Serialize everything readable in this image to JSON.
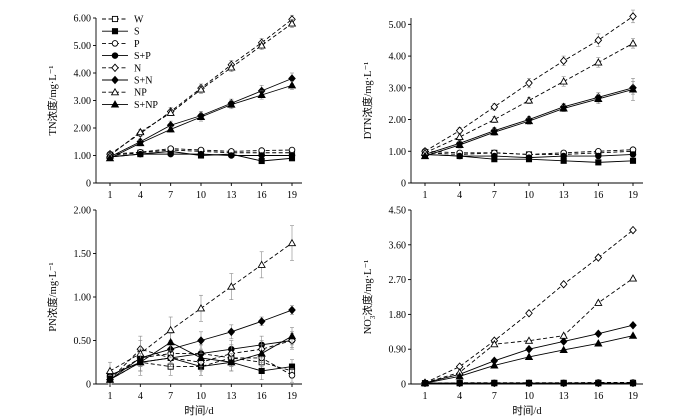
{
  "figure": {
    "legend": [
      {
        "key": "W",
        "label": "W",
        "line": "dashed",
        "marker": "square-open"
      },
      {
        "key": "S",
        "label": "S",
        "line": "solid",
        "marker": "square-filled"
      },
      {
        "key": "P",
        "label": "P",
        "line": "dashed",
        "marker": "circle-open"
      },
      {
        "key": "SP",
        "label": "S+P",
        "line": "solid",
        "marker": "circle-filled"
      },
      {
        "key": "N",
        "label": "N",
        "line": "dashed",
        "marker": "diamond-open"
      },
      {
        "key": "SN",
        "label": "S+N",
        "line": "solid",
        "marker": "diamond-filled"
      },
      {
        "key": "NP",
        "label": "NP",
        "line": "dashed",
        "marker": "triangle-open"
      },
      {
        "key": "SNP",
        "label": "S+NP",
        "line": "solid",
        "marker": "triangle-filled"
      }
    ]
  },
  "chart_data": [
    {
      "id": "tn",
      "type": "line",
      "ylabel": "TN浓度/mg·L⁻¹",
      "xlabel": "",
      "x": [
        1,
        4,
        7,
        10,
        13,
        16,
        19
      ],
      "ylim": [
        0,
        6
      ],
      "yticks": [
        "0",
        "1.00",
        "2.00",
        "3.00",
        "4.00",
        "5.00",
        "6.00"
      ],
      "ytick_values": [
        0,
        1,
        2,
        3,
        4,
        5,
        6
      ],
      "legend_position": "top-left",
      "series": [
        {
          "name": "W",
          "values": [
            1.0,
            1.1,
            1.2,
            1.15,
            1.1,
            1.1,
            1.1
          ],
          "errors": [
            0.05,
            0.05,
            0.08,
            0.05,
            0.05,
            0.05,
            0.05
          ]
        },
        {
          "name": "S",
          "values": [
            0.95,
            1.05,
            1.15,
            1.0,
            1.05,
            0.8,
            0.9
          ],
          "errors": [
            0.05,
            0.05,
            0.1,
            0.05,
            0.05,
            0.05,
            0.05
          ]
        },
        {
          "name": "P",
          "values": [
            1.05,
            1.12,
            1.25,
            1.2,
            1.15,
            1.18,
            1.2
          ],
          "errors": [
            0.05,
            0.05,
            0.05,
            0.05,
            0.05,
            0.05,
            0.05
          ]
        },
        {
          "name": "S+P",
          "values": [
            0.95,
            1.05,
            1.05,
            1.05,
            1.0,
            1.0,
            1.0
          ],
          "errors": [
            0.05,
            0.05,
            0.05,
            0.05,
            0.05,
            0.05,
            0.05
          ]
        },
        {
          "name": "N",
          "values": [
            1.05,
            1.8,
            2.6,
            3.45,
            4.3,
            5.1,
            5.95
          ],
          "errors": [
            0.05,
            0.1,
            0.15,
            0.15,
            0.15,
            0.15,
            0.15
          ]
        },
        {
          "name": "S+N",
          "values": [
            0.95,
            1.5,
            2.1,
            2.45,
            2.9,
            3.35,
            3.8
          ],
          "errors": [
            0.05,
            0.1,
            0.15,
            0.15,
            0.15,
            0.2,
            0.2
          ]
        },
        {
          "name": "NP",
          "values": [
            1.0,
            1.85,
            2.55,
            3.4,
            4.2,
            5.0,
            5.8
          ],
          "errors": [
            0.05,
            0.1,
            0.1,
            0.15,
            0.15,
            0.15,
            0.15
          ]
        },
        {
          "name": "S+NP",
          "values": [
            0.9,
            1.45,
            1.95,
            2.4,
            2.85,
            3.2,
            3.55
          ],
          "errors": [
            0.05,
            0.1,
            0.1,
            0.15,
            0.15,
            0.15,
            0.15
          ]
        }
      ]
    },
    {
      "id": "dtn",
      "type": "line",
      "ylabel": "DTN浓度/mg·L⁻¹",
      "xlabel": "",
      "x": [
        1,
        4,
        7,
        10,
        13,
        16,
        19
      ],
      "ylim": [
        0,
        5.2
      ],
      "yticks": [
        "0",
        "1.00",
        "2.00",
        "3.00",
        "4.00",
        "5.00"
      ],
      "ytick_values": [
        0,
        1,
        2,
        3,
        4,
        5
      ],
      "series": [
        {
          "name": "W",
          "values": [
            0.95,
            0.9,
            0.95,
            0.9,
            0.9,
            0.95,
            1.0
          ],
          "errors": [
            0.05,
            0.05,
            0.05,
            0.05,
            0.05,
            0.05,
            0.05
          ]
        },
        {
          "name": "S",
          "values": [
            0.9,
            0.85,
            0.75,
            0.75,
            0.7,
            0.65,
            0.7
          ],
          "errors": [
            0.05,
            0.05,
            0.05,
            0.05,
            0.05,
            0.05,
            0.05
          ]
        },
        {
          "name": "P",
          "values": [
            1.0,
            0.95,
            0.95,
            0.9,
            0.95,
            1.0,
            1.05
          ],
          "errors": [
            0.05,
            0.05,
            0.05,
            0.05,
            0.05,
            0.05,
            0.05
          ]
        },
        {
          "name": "S+P",
          "values": [
            0.9,
            0.85,
            0.85,
            0.8,
            0.85,
            0.85,
            0.9
          ],
          "errors": [
            0.05,
            0.05,
            0.05,
            0.05,
            0.05,
            0.05,
            0.05
          ]
        },
        {
          "name": "N",
          "values": [
            1.0,
            1.65,
            2.4,
            3.15,
            3.85,
            4.5,
            5.25
          ],
          "errors": [
            0.05,
            0.1,
            0.1,
            0.15,
            0.15,
            0.2,
            0.2
          ]
        },
        {
          "name": "S+N",
          "values": [
            0.9,
            1.25,
            1.65,
            2.0,
            2.4,
            2.7,
            3.0
          ],
          "errors": [
            0.05,
            0.1,
            0.1,
            0.1,
            0.1,
            0.15,
            0.2
          ]
        },
        {
          "name": "NP",
          "values": [
            0.95,
            1.45,
            2.0,
            2.6,
            3.2,
            3.8,
            4.4
          ],
          "errors": [
            0.05,
            0.1,
            0.1,
            0.1,
            0.15,
            0.15,
            0.15
          ]
        },
        {
          "name": "S+NP",
          "values": [
            0.85,
            1.2,
            1.6,
            1.95,
            2.35,
            2.65,
            2.95
          ],
          "errors": [
            0.05,
            0.1,
            0.1,
            0.1,
            0.1,
            0.15,
            0.35
          ]
        }
      ]
    },
    {
      "id": "pn",
      "type": "line",
      "ylabel": "PN浓度/mg·L⁻¹",
      "xlabel": "时间/d",
      "x": [
        1,
        4,
        7,
        10,
        13,
        16,
        19
      ],
      "ylim": [
        0,
        2
      ],
      "yticks": [
        "0",
        "0.50",
        "1.00",
        "1.50",
        "2.00"
      ],
      "ytick_values": [
        0,
        0.5,
        1,
        1.5,
        2
      ],
      "series": [
        {
          "name": "W",
          "values": [
            0.05,
            0.25,
            0.2,
            0.2,
            0.3,
            0.25,
            0.15
          ],
          "errors": [
            0.05,
            0.15,
            0.1,
            0.1,
            0.1,
            0.1,
            0.08
          ]
        },
        {
          "name": "S",
          "values": [
            0.1,
            0.25,
            0.3,
            0.2,
            0.25,
            0.15,
            0.2
          ],
          "errors": [
            0.05,
            0.1,
            0.1,
            0.1,
            0.1,
            0.1,
            0.08
          ]
        },
        {
          "name": "P",
          "values": [
            0.08,
            0.3,
            0.35,
            0.35,
            0.3,
            0.3,
            0.1
          ],
          "errors": [
            0.05,
            0.1,
            0.1,
            0.1,
            0.1,
            0.1,
            0.08
          ]
        },
        {
          "name": "S+P",
          "values": [
            0.1,
            0.25,
            0.3,
            0.35,
            0.4,
            0.45,
            0.5
          ],
          "errors": [
            0.05,
            0.1,
            0.1,
            0.1,
            0.1,
            0.1,
            0.08
          ]
        },
        {
          "name": "N",
          "values": [
            0.05,
            0.4,
            0.3,
            0.25,
            0.35,
            0.4,
            0.5
          ],
          "errors": [
            0.05,
            0.15,
            0.1,
            0.1,
            0.1,
            0.1,
            0.1
          ]
        },
        {
          "name": "S+N",
          "values": [
            0.05,
            0.3,
            0.4,
            0.5,
            0.6,
            0.72,
            0.85
          ],
          "errors": [
            0.05,
            0.1,
            0.1,
            0.1,
            0.08,
            0.05,
            0.05
          ]
        },
        {
          "name": "NP",
          "values": [
            0.15,
            0.35,
            0.62,
            0.87,
            1.12,
            1.37,
            1.62
          ],
          "errors": [
            0.1,
            0.15,
            0.15,
            0.15,
            0.15,
            0.15,
            0.2
          ]
        },
        {
          "name": "S+NP",
          "values": [
            0.05,
            0.25,
            0.48,
            0.3,
            0.25,
            0.35,
            0.55
          ],
          "errors": [
            0.05,
            0.1,
            0.1,
            0.1,
            0.1,
            0.1,
            0.1
          ]
        }
      ]
    },
    {
      "id": "no3",
      "type": "line",
      "ylabel_main": "NO",
      "ylabel_sub": "3",
      "ylabel_sup": "−",
      "ylabel_rest": "浓度/mg·L⁻¹",
      "xlabel": "时间/d",
      "x": [
        1,
        4,
        7,
        10,
        13,
        16,
        19
      ],
      "ylim": [
        0,
        4.5
      ],
      "yticks": [
        "0",
        "0.90",
        "1.80",
        "2.70",
        "3.60",
        "4.50"
      ],
      "ytick_values": [
        0,
        0.9,
        1.8,
        2.7,
        3.6,
        4.5
      ],
      "series": [
        {
          "name": "W",
          "values": [
            0.02,
            0.03,
            0.03,
            0.03,
            0.03,
            0.03,
            0.03
          ],
          "errors": [
            0,
            0,
            0,
            0,
            0,
            0,
            0
          ]
        },
        {
          "name": "S",
          "values": [
            0.02,
            0.02,
            0.02,
            0.02,
            0.02,
            0.02,
            0.02
          ],
          "errors": [
            0,
            0,
            0,
            0,
            0,
            0,
            0
          ]
        },
        {
          "name": "P",
          "values": [
            0.02,
            0.03,
            0.03,
            0.03,
            0.03,
            0.04,
            0.04
          ],
          "errors": [
            0,
            0,
            0,
            0,
            0,
            0,
            0
          ]
        },
        {
          "name": "S+P",
          "values": [
            0.02,
            0.02,
            0.02,
            0.02,
            0.02,
            0.02,
            0.02
          ],
          "errors": [
            0,
            0,
            0,
            0,
            0,
            0,
            0
          ]
        },
        {
          "name": "N",
          "values": [
            0.03,
            0.45,
            1.12,
            1.83,
            2.58,
            3.27,
            3.98
          ],
          "errors": [
            0,
            0.02,
            0.03,
            0.03,
            0.03,
            0.03,
            0.03
          ]
        },
        {
          "name": "S+N",
          "values": [
            0.03,
            0.25,
            0.6,
            0.9,
            1.1,
            1.3,
            1.52
          ],
          "errors": [
            0,
            0.02,
            0.02,
            0.02,
            0.02,
            0.02,
            0.02
          ]
        },
        {
          "name": "NP",
          "values": [
            0.03,
            0.3,
            1.03,
            1.12,
            1.25,
            2.1,
            2.73
          ],
          "errors": [
            0,
            0.02,
            0.02,
            0.02,
            0.02,
            0.03,
            0.03
          ]
        },
        {
          "name": "S+NP",
          "values": [
            0.02,
            0.2,
            0.48,
            0.7,
            0.88,
            1.05,
            1.25
          ],
          "errors": [
            0,
            0.02,
            0.02,
            0.02,
            0.02,
            0.02,
            0.02
          ]
        }
      ]
    }
  ]
}
